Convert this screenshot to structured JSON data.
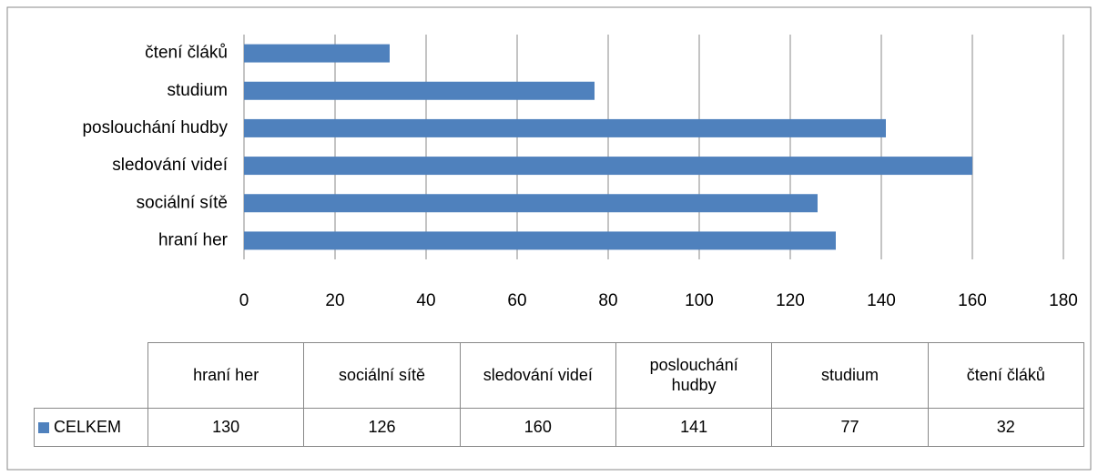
{
  "chart_data": {
    "type": "bar",
    "orientation": "horizontal",
    "categories": [
      "hraní her",
      "sociální sítě",
      "sledování videí",
      "poslouchání hudby",
      "studium",
      "čtení čláků"
    ],
    "series": [
      {
        "name": "CELKEM",
        "color": "#4f81bd",
        "values": [
          130,
          126,
          160,
          141,
          77,
          32
        ]
      }
    ],
    "xlim": [
      0,
      180
    ],
    "xticks": [
      0,
      20,
      40,
      60,
      80,
      100,
      120,
      140,
      160,
      180
    ],
    "grid": true,
    "data_table": true
  }
}
